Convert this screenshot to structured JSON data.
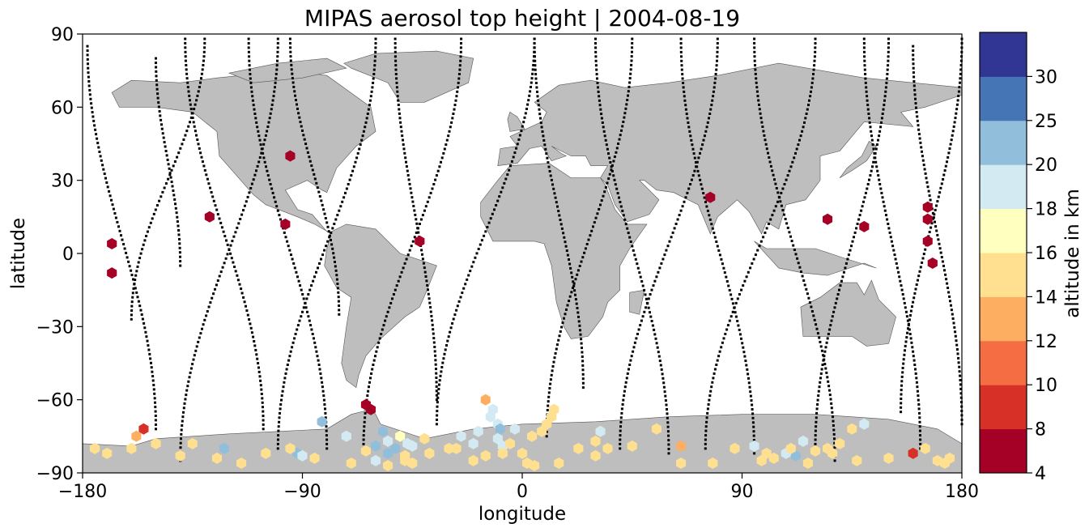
{
  "chart_data": {
    "type": "scatter",
    "title": "MIPAS aerosol top height | 2004-08-19",
    "xlabel": "longitude",
    "ylabel": "latitude",
    "xlim": [
      -180,
      180
    ],
    "ylim": [
      -90,
      90
    ],
    "xticks": [
      -180,
      -90,
      0,
      90,
      180
    ],
    "yticks": [
      -90,
      -60,
      -30,
      0,
      30,
      60,
      90
    ],
    "xtick_labels": [
      "−180",
      "−90",
      "0",
      "90",
      "180"
    ],
    "ytick_labels": [
      "−90",
      "−60",
      "−30",
      "0",
      "30",
      "60",
      "90"
    ],
    "land_color": "#bebebe",
    "colorbar": {
      "label": "altitude in km",
      "bounds": [
        4,
        8,
        10,
        12,
        14,
        16,
        18,
        20,
        25,
        30
      ],
      "tick_labels": [
        "4",
        "8",
        "10",
        "12",
        "14",
        "16",
        "18",
        "20",
        "25",
        "30"
      ],
      "colors": [
        "#a50026",
        "#d73027",
        "#f46d43",
        "#fdae61",
        "#fee090",
        "#ffffbf",
        "#d4eaf3",
        "#91bfdb",
        "#4575b4",
        "#313695"
      ]
    },
    "series": [
      {
        "x": [
          -168,
          -168,
          -128,
          -97,
          -95,
          -42,
          77,
          125,
          140,
          166,
          166,
          166,
          168,
          -64,
          -62,
          -155,
          -158,
          -122,
          -135,
          -92,
          -82,
          -72,
          -60,
          -57,
          -55,
          -50,
          -47,
          -45,
          -15,
          -13,
          -12,
          -10,
          -9,
          -25,
          -20,
          -18,
          -10,
          -3,
          -8,
          13,
          12,
          10,
          8,
          4,
          30,
          32,
          45,
          130,
          135,
          125,
          108,
          115,
          140,
          112,
          -60,
          -55,
          -52,
          -48,
          -90,
          -40,
          -30,
          -5,
          0,
          15,
          35,
          65,
          95,
          100,
          110,
          -175,
          -170,
          -160,
          -150,
          -140,
          -125,
          -115,
          -105,
          -95,
          -85,
          -70,
          -64,
          -55,
          -48,
          -45,
          -38,
          -27,
          -20,
          -15,
          -8,
          2,
          5,
          23,
          30,
          55,
          65,
          78,
          87,
          98,
          103,
          117,
          120,
          127,
          137,
          150,
          160,
          165,
          170,
          173,
          175
        ],
        "y": [
          4,
          -8,
          15,
          12,
          40,
          5,
          23,
          14,
          11,
          19,
          14,
          5,
          -4,
          -62,
          -64,
          -72,
          -75,
          -80,
          -78,
          -82,
          -69,
          -75,
          -79,
          -73,
          -77,
          -75,
          -78,
          -79,
          -60,
          -67,
          -64,
          -70,
          -72,
          -75,
          -78,
          -73,
          -76,
          -72,
          -79,
          -64,
          -67,
          -70,
          -73,
          -75,
          -77,
          -73,
          -79,
          -78,
          -72,
          -80,
          -82,
          -77,
          -70,
          -83,
          -85,
          -82,
          -80,
          -85,
          -83,
          -76,
          -80,
          -78,
          -82,
          -86,
          -80,
          -79,
          -79,
          -82,
          -80,
          -80,
          -82,
          -80,
          -78,
          -83,
          -84,
          -86,
          -82,
          -80,
          -84,
          -86,
          -81,
          -87,
          -83,
          -86,
          -82,
          -80,
          -85,
          -83,
          -82,
          -86,
          -87,
          -80,
          -83,
          -72,
          -86,
          -86,
          -80,
          -85,
          -84,
          -86,
          -81,
          -82,
          -85,
          -84,
          -82,
          -80,
          -85,
          -86,
          -84
        ],
        "altitude_km": [
          5,
          5,
          5,
          5,
          5,
          5,
          5,
          5,
          5,
          5,
          5,
          5,
          5,
          5,
          5,
          9,
          13,
          22,
          15,
          22,
          22,
          19,
          22,
          22,
          19,
          17,
          18,
          19,
          13,
          19,
          19,
          19,
          22,
          19,
          19,
          19,
          19,
          19,
          19,
          15,
          15,
          15,
          15,
          15,
          15,
          19,
          15,
          15,
          15,
          15,
          19,
          19,
          19,
          22,
          19,
          22,
          22,
          15,
          19,
          15,
          15,
          15,
          15,
          15,
          15,
          13,
          19,
          15,
          15,
          15,
          15,
          15,
          15,
          15,
          15,
          15,
          15,
          15,
          15,
          15,
          15,
          15,
          15,
          15,
          15,
          15,
          15,
          15,
          15,
          15,
          15,
          15,
          15,
          15,
          15,
          15,
          15,
          15,
          15,
          15,
          15,
          15,
          15,
          15,
          9,
          15,
          15,
          15,
          15
        ]
      }
    ],
    "orbit_tracks": [
      {
        "from_lat": 85,
        "to_lat": -72,
        "start_lon": -178,
        "end_lon": -150
      },
      {
        "from_lat": -27,
        "to_lat": 88,
        "start_lon": -160,
        "end_lon": -130
      },
      {
        "from_lat": 80,
        "to_lat": -5,
        "start_lon": -150,
        "end_lon": -140
      },
      {
        "from_lat": 88,
        "to_lat": -72,
        "start_lon": -138,
        "end_lon": -106
      },
      {
        "from_lat": -85,
        "to_lat": 88,
        "start_lon": -140,
        "end_lon": -100
      },
      {
        "from_lat": 88,
        "to_lat": -80,
        "start_lon": -112,
        "end_lon": -80
      },
      {
        "from_lat": -80,
        "to_lat": 88,
        "start_lon": -100,
        "end_lon": -60
      },
      {
        "from_lat": 88,
        "to_lat": -25,
        "start_lon": -95,
        "end_lon": -75
      },
      {
        "from_lat": -80,
        "to_lat": 88,
        "start_lon": -65,
        "end_lon": -25
      },
      {
        "from_lat": 88,
        "to_lat": -60,
        "start_lon": -52,
        "end_lon": -35
      },
      {
        "from_lat": -70,
        "to_lat": 88,
        "start_lon": -35,
        "end_lon": 5
      },
      {
        "from_lat": 88,
        "to_lat": -55,
        "start_lon": 5,
        "end_lon": 25
      },
      {
        "from_lat": -75,
        "to_lat": 88,
        "start_lon": 10,
        "end_lon": 45
      },
      {
        "from_lat": 88,
        "to_lat": -82,
        "start_lon": 30,
        "end_lon": 60
      },
      {
        "from_lat": -80,
        "to_lat": 88,
        "start_lon": 40,
        "end_lon": 80
      },
      {
        "from_lat": 88,
        "to_lat": -82,
        "start_lon": 65,
        "end_lon": 95
      },
      {
        "from_lat": -80,
        "to_lat": 88,
        "start_lon": 75,
        "end_lon": 120
      },
      {
        "from_lat": 88,
        "to_lat": -85,
        "start_lon": 95,
        "end_lon": 128
      },
      {
        "from_lat": -80,
        "to_lat": 88,
        "start_lon": 120,
        "end_lon": 150
      },
      {
        "from_lat": 88,
        "to_lat": -80,
        "start_lon": 140,
        "end_lon": 163
      },
      {
        "from_lat": -65,
        "to_lat": 88,
        "start_lon": 155,
        "end_lon": 180
      },
      {
        "from_lat": 85,
        "to_lat": -70,
        "start_lon": 160,
        "end_lon": 180
      }
    ]
  }
}
